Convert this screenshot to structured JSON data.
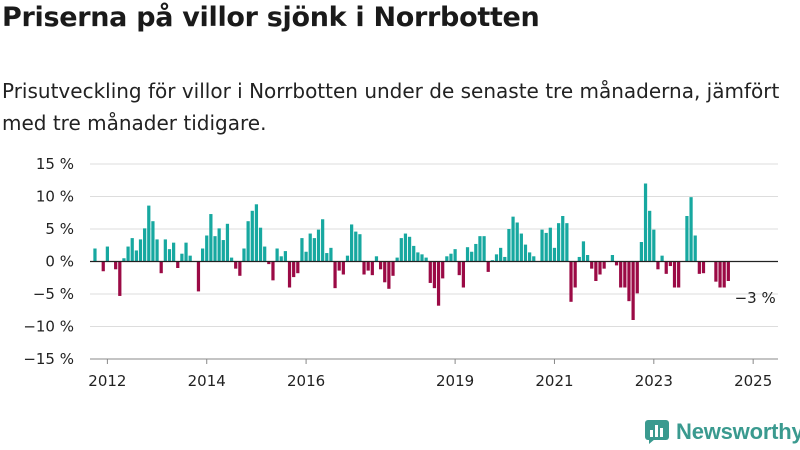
{
  "title": "Priserna på villor sjönk i Norrbotten",
  "subtitle": "Prisutveckling för villor i Norrbotten under de senaste tre månaderna, jämfört med tre månader tidigare.",
  "brand": "Newsworthy",
  "colors": {
    "positive": "#17a8a0",
    "negative": "#9b0a45",
    "brand": "#3a9a8f"
  },
  "chart_data": {
    "type": "bar",
    "title": "",
    "xlabel": "",
    "ylabel": "",
    "ylim": [
      -15,
      15
    ],
    "yticks": [
      15,
      10,
      5,
      0,
      -5,
      -10,
      -15
    ],
    "ytick_labels": [
      "15 %",
      "10 %",
      "5 %",
      "0 %",
      "−5 %",
      "−10 %",
      "−15 %"
    ],
    "xtick_labels": [
      {
        "label": "2012",
        "x": 2012
      },
      {
        "label": "2014",
        "x": 2014
      },
      {
        "label": "2016",
        "x": 2016
      },
      {
        "label": "2019",
        "x": 2019
      },
      {
        "label": "2021",
        "x": 2021
      },
      {
        "label": "2023",
        "x": 2023
      },
      {
        "label": "2025",
        "x": 2025
      }
    ],
    "x_start": 2011.75,
    "x_step": 0.0833333,
    "grid": true,
    "annotation": {
      "text": "−3 %",
      "x": 2025.0,
      "y": -3
    },
    "values": [
      2,
      0,
      -1.5,
      2.3,
      0,
      -1.2,
      -5.3,
      0.5,
      2.3,
      3.6,
      1.7,
      3.4,
      5.1,
      8.6,
      6.2,
      3.4,
      -1.8,
      3.4,
      1.9,
      2.9,
      -1,
      1.2,
      2.9,
      0.9,
      0,
      -4.6,
      2,
      4,
      7.3,
      3.9,
      5.1,
      3.3,
      5.8,
      0.6,
      -1.1,
      -2.2,
      2,
      6.2,
      7.8,
      8.8,
      5.2,
      2.3,
      -0.4,
      -2.9,
      2,
      0.8,
      1.6,
      -4,
      -2.4,
      -1.8,
      3.6,
      1.5,
      4.3,
      3.6,
      4.9,
      6.5,
      1.3,
      2.1,
      -4.1,
      -1.4,
      -2,
      0.9,
      5.7,
      4.6,
      4.2,
      -2,
      -1.4,
      -2.1,
      0.8,
      -1.2,
      -3.2,
      -4.2,
      -2.2,
      0.6,
      3.6,
      4.3,
      3.8,
      2.4,
      1.4,
      1.1,
      0.6,
      -3.3,
      -4.1,
      -6.8,
      -2.6,
      0.8,
      1.2,
      1.9,
      -2.1,
      -4,
      2.2,
      1.5,
      2.7,
      3.9,
      3.9,
      -1.6,
      0.2,
      1.1,
      2.1,
      0.7,
      5,
      6.9,
      6,
      4.3,
      2.6,
      1.4,
      0.8,
      0,
      4.9,
      4.4,
      5.2,
      2.1,
      5.9,
      7,
      5.9,
      -6.2,
      -4,
      0.7,
      3.1,
      1,
      -1.1,
      -3,
      -2,
      -1.1,
      0,
      1,
      -0.6,
      -4,
      -4,
      -6.1,
      -9,
      -4.9,
      3,
      12,
      7.8,
      4.9,
      -1.2,
      0.9,
      -1.9,
      -0.7,
      -4,
      -4,
      0,
      7,
      9.9,
      4,
      -1.9,
      -1.8,
      0,
      0,
      -3.1,
      -4,
      -4,
      -3
    ]
  }
}
